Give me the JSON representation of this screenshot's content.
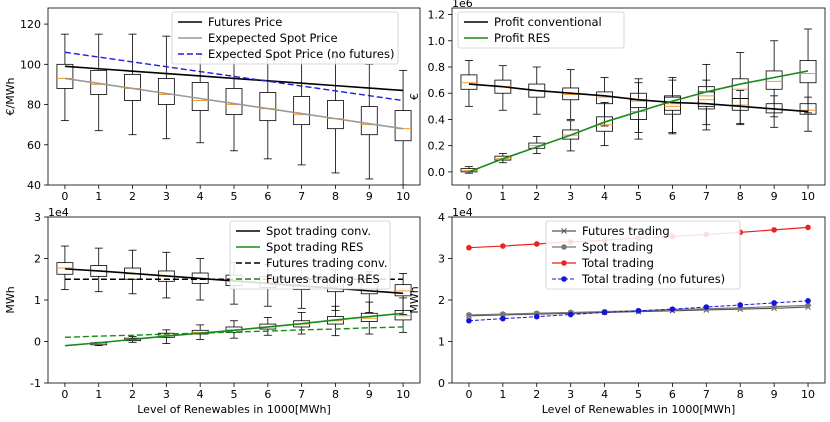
{
  "chart_data": [
    {
      "type": "box",
      "id": "price",
      "ylabel": "€/MWh",
      "xlabel": "",
      "x": [
        0,
        1,
        2,
        3,
        4,
        5,
        6,
        7,
        8,
        9,
        10
      ],
      "ylim": [
        40,
        128
      ],
      "yticks": [
        40,
        60,
        80,
        100,
        120
      ],
      "exponent": "",
      "boxes": [
        {
          "low": 72,
          "q1": 88,
          "med": 93,
          "q3": 100,
          "high": 115
        },
        {
          "low": 67,
          "q1": 85,
          "med": 90,
          "q3": 97,
          "high": 115
        },
        {
          "low": 65,
          "q1": 82,
          "med": 88,
          "q3": 95,
          "high": 115
        },
        {
          "low": 63,
          "q1": 80,
          "med": 85,
          "q3": 93,
          "high": 114
        },
        {
          "low": 61,
          "q1": 77,
          "med": 82,
          "q3": 91,
          "high": 105
        },
        {
          "low": 57,
          "q1": 75,
          "med": 80,
          "q3": 88,
          "high": 105
        },
        {
          "low": 53,
          "q1": 72,
          "med": 78,
          "q3": 86,
          "high": 104
        },
        {
          "low": 50,
          "q1": 70,
          "med": 75,
          "q3": 84,
          "high": 104
        },
        {
          "low": 46,
          "q1": 68,
          "med": 73,
          "q3": 82,
          "high": 104
        },
        {
          "low": 43,
          "q1": 65,
          "med": 70,
          "q3": 79,
          "high": 100
        },
        {
          "low": 40,
          "q1": 62,
          "med": 68,
          "q3": 77,
          "high": 97
        }
      ],
      "lines": [
        {
          "name": "Futures Price",
          "color": "#000000",
          "dash": "",
          "width": 1.6,
          "marker": "",
          "values": [
            99,
            97.8,
            96.6,
            95.4,
            94.2,
            93,
            91.8,
            90.6,
            89.4,
            88.2,
            87
          ]
        },
        {
          "name": "Expepected Spot Price",
          "color": "#9a9a9a",
          "dash": "",
          "width": 1.6,
          "marker": "",
          "values": [
            93,
            90.5,
            88,
            85.5,
            83,
            80.5,
            78,
            75.5,
            73,
            70.5,
            68
          ]
        },
        {
          "name": "Expected Spot Price (no futures)",
          "color": "#1f1fd8",
          "dash": "6,3",
          "width": 1.4,
          "marker": "",
          "values": [
            106,
            103.6,
            101.2,
            98.8,
            96.4,
            94,
            91.6,
            89.2,
            86.8,
            84.4,
            82
          ]
        }
      ],
      "legend": {
        "position": "top-right",
        "entries": [
          "Futures Price",
          "Expepected Spot Price",
          "Expected Spot Price (no futures)"
        ]
      }
    },
    {
      "type": "box",
      "id": "profit",
      "ylabel": "€",
      "xlabel": "",
      "x": [
        0,
        1,
        2,
        3,
        4,
        5,
        6,
        7,
        8,
        9,
        10
      ],
      "ylim": [
        -0.1,
        1.25
      ],
      "yticks": [
        0.0,
        0.2,
        0.4,
        0.6,
        0.8,
        1.0,
        1.2
      ],
      "tick_decimals": 1,
      "exponent": "1e6",
      "boxes": [
        {
          "low": 0.5,
          "q1": 0.63,
          "med": 0.68,
          "q3": 0.74,
          "high": 0.85
        },
        {
          "low": 0.47,
          "q1": 0.6,
          "med": 0.65,
          "q3": 0.7,
          "high": 0.81
        },
        {
          "low": 0.44,
          "q1": 0.57,
          "med": 0.62,
          "q3": 0.67,
          "high": 0.8
        },
        {
          "low": 0.4,
          "q1": 0.55,
          "med": 0.59,
          "q3": 0.64,
          "high": 0.78
        },
        {
          "low": 0.35,
          "q1": 0.52,
          "med": 0.57,
          "q3": 0.61,
          "high": 0.72
        },
        {
          "low": 0.3,
          "q1": 0.49,
          "med": 0.54,
          "q3": 0.6,
          "high": 0.71
        },
        {
          "low": 0.3,
          "q1": 0.47,
          "med": 0.52,
          "q3": 0.58,
          "high": 0.7
        },
        {
          "low": 0.36,
          "q1": 0.5,
          "med": 0.55,
          "q3": 0.61,
          "high": 0.7
        },
        {
          "low": 0.36,
          "q1": 0.47,
          "med": 0.51,
          "q3": 0.56,
          "high": 0.62
        },
        {
          "low": 0.34,
          "q1": 0.45,
          "med": 0.48,
          "q3": 0.52,
          "high": 0.58
        },
        {
          "low": 0.31,
          "q1": 0.44,
          "med": 0.47,
          "q3": 0.52,
          "high": 0.57
        },
        {
          "low": -0.01,
          "q1": 0.0,
          "med": 0.01,
          "q3": 0.025,
          "high": 0.04
        },
        {
          "low": 0.07,
          "q1": 0.09,
          "med": 0.1,
          "q3": 0.12,
          "high": 0.14
        },
        {
          "low": 0.14,
          "q1": 0.18,
          "med": 0.2,
          "q3": 0.22,
          "high": 0.27
        },
        {
          "low": 0.16,
          "q1": 0.25,
          "med": 0.28,
          "q3": 0.32,
          "high": 0.39
        },
        {
          "low": 0.2,
          "q1": 0.31,
          "med": 0.36,
          "q3": 0.42,
          "high": 0.53
        },
        {
          "low": 0.25,
          "q1": 0.4,
          "med": 0.46,
          "q3": 0.55,
          "high": 0.68
        },
        {
          "low": 0.29,
          "q1": 0.44,
          "med": 0.5,
          "q3": 0.57,
          "high": 0.72
        },
        {
          "low": 0.32,
          "q1": 0.48,
          "med": 0.58,
          "q3": 0.65,
          "high": 0.82
        },
        {
          "low": 0.37,
          "q1": 0.56,
          "med": 0.63,
          "q3": 0.71,
          "high": 0.91
        },
        {
          "low": 0.42,
          "q1": 0.63,
          "med": 0.69,
          "q3": 0.77,
          "high": 1.0
        },
        {
          "low": 0.45,
          "q1": 0.68,
          "med": 0.75,
          "q3": 0.85,
          "high": 1.09
        }
      ],
      "box_x": [
        0,
        1,
        2,
        3,
        4,
        5,
        6,
        7,
        8,
        9,
        10,
        0,
        1,
        2,
        3,
        4,
        5,
        6,
        7,
        8,
        9,
        10
      ],
      "lines": [
        {
          "name": "Profit conventional",
          "color": "#000000",
          "dash": "",
          "width": 1.6,
          "marker": "",
          "values": [
            0.67,
            0.65,
            0.62,
            0.6,
            0.58,
            0.55,
            0.53,
            0.52,
            0.5,
            0.48,
            0.46
          ]
        },
        {
          "name": "Profit RES",
          "color": "#1a8a1a",
          "dash": "",
          "width": 1.6,
          "marker": "",
          "values": [
            0.0,
            0.1,
            0.19,
            0.28,
            0.38,
            0.46,
            0.54,
            0.61,
            0.67,
            0.72,
            0.77
          ]
        }
      ],
      "legend": {
        "position": "top-left",
        "entries": [
          "Profit conventional",
          "Profit RES"
        ]
      }
    },
    {
      "type": "box",
      "id": "volume",
      "ylabel": "MWh",
      "xlabel": "Level of Renewables in 1000[MWh]",
      "x": [
        0,
        1,
        2,
        3,
        4,
        5,
        6,
        7,
        8,
        9,
        10
      ],
      "ylim": [
        -1,
        3
      ],
      "yticks": [
        -1,
        0,
        1,
        2,
        3
      ],
      "exponent": "1e4",
      "boxes": [
        {
          "low": 1.25,
          "q1": 1.62,
          "med": 1.77,
          "q3": 1.9,
          "high": 2.3
        },
        {
          "low": 1.2,
          "q1": 1.57,
          "med": 1.7,
          "q3": 1.83,
          "high": 2.25
        },
        {
          "low": 1.15,
          "q1": 1.5,
          "med": 1.63,
          "q3": 1.77,
          "high": 2.2
        },
        {
          "low": 1.05,
          "q1": 1.45,
          "med": 1.57,
          "q3": 1.7,
          "high": 2.15
        },
        {
          "low": 1.0,
          "q1": 1.4,
          "med": 1.52,
          "q3": 1.65,
          "high": 2.0
        },
        {
          "low": 0.9,
          "q1": 1.35,
          "med": 1.48,
          "q3": 1.6,
          "high": 1.9
        },
        {
          "low": 0.85,
          "q1": 1.3,
          "med": 1.42,
          "q3": 1.57,
          "high": 1.85
        },
        {
          "low": 0.8,
          "q1": 1.25,
          "med": 1.38,
          "q3": 1.52,
          "high": 1.8
        },
        {
          "low": 0.75,
          "q1": 1.2,
          "med": 1.32,
          "q3": 1.47,
          "high": 1.72
        },
        {
          "low": 0.7,
          "q1": 1.15,
          "med": 1.27,
          "q3": 1.42,
          "high": 1.68
        },
        {
          "low": 0.65,
          "q1": 1.1,
          "med": 1.22,
          "q3": 1.37,
          "high": 1.64
        },
        {
          "low": -0.1,
          "q1": -0.08,
          "med": -0.05,
          "q3": -0.03,
          "high": -0.02
        },
        {
          "low": -0.02,
          "q1": 0.02,
          "med": 0.05,
          "q3": 0.08,
          "high": 0.12
        },
        {
          "low": -0.05,
          "q1": 0.1,
          "med": 0.15,
          "q3": 0.2,
          "high": 0.28
        },
        {
          "low": 0.05,
          "q1": 0.18,
          "med": 0.22,
          "q3": 0.27,
          "high": 0.4
        },
        {
          "low": 0.08,
          "q1": 0.22,
          "med": 0.28,
          "q3": 0.35,
          "high": 0.5
        },
        {
          "low": 0.15,
          "q1": 0.3,
          "med": 0.35,
          "q3": 0.42,
          "high": 0.58
        },
        {
          "low": 0.18,
          "q1": 0.35,
          "med": 0.42,
          "q3": 0.5,
          "high": 0.7
        },
        {
          "low": 0.14,
          "q1": 0.42,
          "med": 0.5,
          "q3": 0.6,
          "high": 0.85
        },
        {
          "low": 0.18,
          "q1": 0.48,
          "med": 0.56,
          "q3": 0.68,
          "high": 0.95
        },
        {
          "low": 0.22,
          "q1": 0.52,
          "med": 0.62,
          "q3": 0.75,
          "high": 1.05
        }
      ],
      "box_x": [
        0,
        1,
        2,
        3,
        4,
        5,
        6,
        7,
        8,
        9,
        10,
        1,
        2,
        3,
        4,
        5,
        6,
        7,
        8,
        9,
        10
      ],
      "lines": [
        {
          "name": "Spot trading conv.",
          "color": "#000000",
          "dash": "",
          "width": 1.6,
          "marker": "",
          "values": [
            1.75,
            1.7,
            1.64,
            1.58,
            1.52,
            1.46,
            1.4,
            1.34,
            1.28,
            1.22,
            1.16
          ]
        },
        {
          "name": "Spot trading RES",
          "color": "#1a8a1a",
          "dash": "",
          "width": 1.6,
          "marker": "",
          "values": [
            -0.1,
            -0.03,
            0.05,
            0.13,
            0.2,
            0.27,
            0.35,
            0.43,
            0.52,
            0.6,
            0.68
          ]
        },
        {
          "name": "Futures trading conv.",
          "color": "#000000",
          "dash": "6,3",
          "width": 1.4,
          "marker": "",
          "values": [
            1.5,
            1.5,
            1.5,
            1.5,
            1.5,
            1.5,
            1.5,
            1.5,
            1.5,
            1.5,
            1.5
          ]
        },
        {
          "name": "Futures trading RES",
          "color": "#1a8a1a",
          "dash": "6,3",
          "width": 1.4,
          "marker": "",
          "values": [
            0.1,
            0.13,
            0.15,
            0.18,
            0.2,
            0.23,
            0.25,
            0.28,
            0.3,
            0.33,
            0.35
          ]
        }
      ],
      "legend": {
        "position": "top-right",
        "entries": [
          "Spot trading conv.",
          "Spot trading RES",
          "Futures trading conv.",
          "Futures trading RES"
        ]
      }
    },
    {
      "type": "line",
      "id": "totals",
      "ylabel": "MWh",
      "xlabel": "Level of Renewables in 1000[MWh]",
      "x": [
        0,
        1,
        2,
        3,
        4,
        5,
        6,
        7,
        8,
        9,
        10
      ],
      "ylim": [
        0,
        4
      ],
      "yticks": [
        0,
        1,
        2,
        3,
        4
      ],
      "exponent": "1e4",
      "boxes": [],
      "lines": [
        {
          "name": "Futures trading",
          "color": "#555555",
          "dash": "",
          "width": 1.2,
          "marker": "x",
          "values": [
            1.62,
            1.64,
            1.66,
            1.68,
            1.7,
            1.72,
            1.74,
            1.76,
            1.78,
            1.8,
            1.83
          ]
        },
        {
          "name": "Spot trading",
          "color": "#777777",
          "dash": "",
          "width": 1.2,
          "marker": "o",
          "values": [
            1.64,
            1.66,
            1.68,
            1.7,
            1.72,
            1.74,
            1.77,
            1.79,
            1.81,
            1.84,
            1.87
          ]
        },
        {
          "name": "Total trading",
          "color": "#ee2222",
          "dash": "",
          "width": 1.2,
          "marker": "o",
          "values": [
            3.26,
            3.3,
            3.35,
            3.4,
            3.44,
            3.49,
            3.53,
            3.58,
            3.63,
            3.69,
            3.75
          ]
        },
        {
          "name": "Total trading (no futures)",
          "color": "#1515d8",
          "dash": "4,2",
          "width": 1.0,
          "marker": "o",
          "values": [
            1.5,
            1.55,
            1.6,
            1.65,
            1.7,
            1.74,
            1.78,
            1.83,
            1.88,
            1.93,
            1.98
          ]
        }
      ],
      "legend": {
        "position": "top-right",
        "entries": [
          "Futures trading",
          "Spot trading",
          "Total trading",
          "Total trading (no futures)"
        ]
      }
    }
  ]
}
